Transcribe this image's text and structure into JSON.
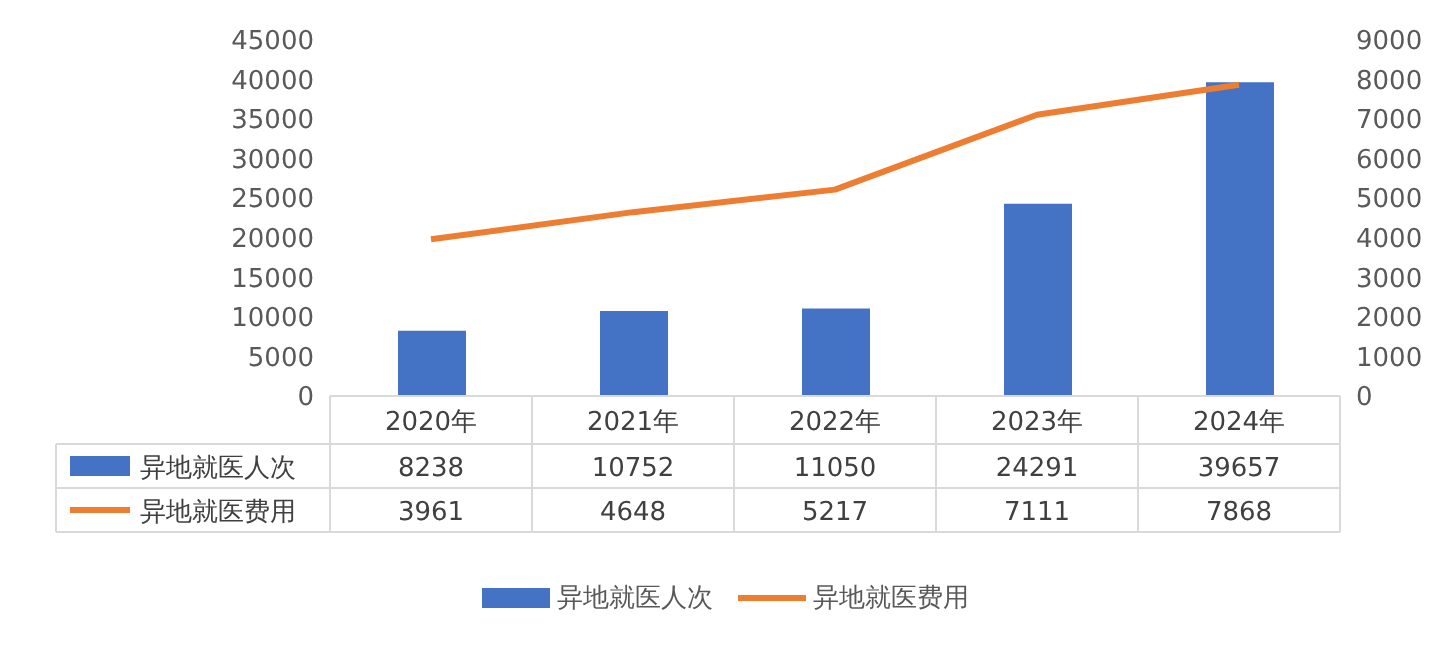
{
  "chart_data": {
    "type": "bar",
    "categories": [
      "2020年",
      "2021年",
      "2022年",
      "2023年",
      "2024年"
    ],
    "series": [
      {
        "name": "异地就医人次",
        "color": "#4472c4",
        "values": [
          8238,
          10752,
          11050,
          24291,
          39657
        ]
      },
      {
        "name": "异地就医费用",
        "type": "line",
        "axis": "y2",
        "color": "#ed7d31",
        "values": [
          3961,
          4648,
          5217,
          7111,
          7868
        ]
      }
    ],
    "ylim": [
      0,
      45000
    ],
    "yticks": [
      0,
      5000,
      10000,
      15000,
      20000,
      25000,
      30000,
      35000,
      40000,
      45000
    ],
    "y2lim": [
      0,
      9000
    ],
    "y2ticks": [
      0,
      1000,
      2000,
      3000,
      4000,
      5000,
      6000,
      7000,
      8000,
      9000
    ],
    "data_labels": true,
    "legend": "bottom",
    "grid": false,
    "marker": "none",
    "line_style": "solid"
  }
}
